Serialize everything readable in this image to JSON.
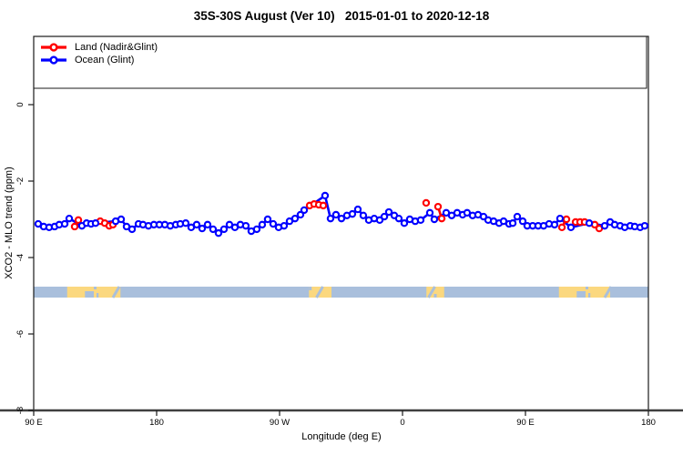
{
  "chart_data": {
    "type": "line",
    "title": "35S-30S August (Ver 10)   2015-01-01 to 2020-12-18",
    "xlabel": "Longitude (deg E)",
    "ylabel": "XCO2 - MLO trend (ppm)",
    "xlim": [
      90,
      540
    ],
    "ylim": [
      -8,
      0
    ],
    "grid": false,
    "legend_position": "top-left",
    "x_ticks": [
      {
        "lon": 90,
        "label": "90 E"
      },
      {
        "lon": 180,
        "label": "180"
      },
      {
        "lon": 270,
        "label": "90 W"
      },
      {
        "lon": 360,
        "label": "0"
      },
      {
        "lon": 450,
        "label": "90 E"
      },
      {
        "lon": 540,
        "label": "180"
      }
    ],
    "y_ticks": [
      {
        "value": 0,
        "label": "0"
      },
      {
        "value": -2,
        "label": "-2"
      },
      {
        "value": -4,
        "label": "-4"
      },
      {
        "value": -6,
        "label": "-6"
      },
      {
        "value": -8,
        "label": "-8"
      }
    ],
    "series": [
      {
        "name": "Land (Nadir&Glint)",
        "color": "#ff0000",
        "marker": "open-circle",
        "points": [
          [
            120,
            -3.19
          ],
          [
            122.7,
            -3.02
          ],
          [
            138.7,
            -3.05
          ],
          [
            142,
            -3.1
          ],
          [
            145.3,
            -3.17
          ],
          [
            148,
            -3.14
          ],
          [
            292,
            -2.64
          ],
          [
            295.3,
            -2.6
          ],
          [
            298.7,
            -2.62
          ],
          [
            302,
            -2.64
          ],
          [
            377.3,
            -2.57
          ],
          [
            386,
            -2.67
          ],
          [
            388.7,
            -2.98
          ],
          [
            476.7,
            -3.21
          ],
          [
            480,
            -3.0
          ],
          [
            486.7,
            -3.07
          ],
          [
            490,
            -3.07
          ],
          [
            493.3,
            -3.07
          ],
          [
            500.7,
            -3.14
          ],
          [
            504,
            -3.24
          ]
        ]
      },
      {
        "name": "Ocean (Glint)",
        "color": "#0000ff",
        "marker": "open-circle",
        "points": [
          [
            93.3,
            -3.12
          ],
          [
            97.3,
            -3.19
          ],
          [
            101.3,
            -3.21
          ],
          [
            105.3,
            -3.19
          ],
          [
            108.7,
            -3.14
          ],
          [
            112.7,
            -3.12
          ],
          [
            116,
            -2.98
          ],
          [
            125.3,
            -3.17
          ],
          [
            128.7,
            -3.1
          ],
          [
            132,
            -3.12
          ],
          [
            135.3,
            -3.1
          ],
          [
            150,
            -3.05
          ],
          [
            154,
            -3.0
          ],
          [
            158,
            -3.19
          ],
          [
            162,
            -3.26
          ],
          [
            166.7,
            -3.12
          ],
          [
            170,
            -3.14
          ],
          [
            174,
            -3.17
          ],
          [
            178,
            -3.14
          ],
          [
            182,
            -3.14
          ],
          [
            186,
            -3.14
          ],
          [
            190,
            -3.17
          ],
          [
            194,
            -3.14
          ],
          [
            197.3,
            -3.12
          ],
          [
            201.3,
            -3.1
          ],
          [
            205.3,
            -3.21
          ],
          [
            209.3,
            -3.14
          ],
          [
            213.3,
            -3.24
          ],
          [
            217.3,
            -3.14
          ],
          [
            221.3,
            -3.26
          ],
          [
            225.3,
            -3.36
          ],
          [
            229.3,
            -3.26
          ],
          [
            233.3,
            -3.14
          ],
          [
            237.3,
            -3.21
          ],
          [
            241.3,
            -3.14
          ],
          [
            245.3,
            -3.17
          ],
          [
            249.3,
            -3.31
          ],
          [
            253.3,
            -3.26
          ],
          [
            257.3,
            -3.14
          ],
          [
            261.3,
            -3.0
          ],
          [
            265.3,
            -3.12
          ],
          [
            269.3,
            -3.21
          ],
          [
            273.3,
            -3.17
          ],
          [
            277.3,
            -3.05
          ],
          [
            281.3,
            -2.98
          ],
          [
            285.3,
            -2.88
          ],
          [
            288,
            -2.76
          ],
          [
            303.3,
            -2.38
          ],
          [
            307.3,
            -2.98
          ],
          [
            311.3,
            -2.88
          ],
          [
            315.3,
            -2.98
          ],
          [
            319.3,
            -2.9
          ],
          [
            323.3,
            -2.86
          ],
          [
            327.3,
            -2.74
          ],
          [
            331.3,
            -2.9
          ],
          [
            335.3,
            -3.02
          ],
          [
            339.3,
            -2.98
          ],
          [
            343.3,
            -3.02
          ],
          [
            346.7,
            -2.93
          ],
          [
            350,
            -2.81
          ],
          [
            354,
            -2.9
          ],
          [
            357.3,
            -2.98
          ],
          [
            361.3,
            -3.1
          ],
          [
            365.3,
            -3.0
          ],
          [
            369.3,
            -3.05
          ],
          [
            373.3,
            -3.02
          ],
          [
            380,
            -2.83
          ],
          [
            383.3,
            -3.0
          ],
          [
            392,
            -2.83
          ],
          [
            396,
            -2.9
          ],
          [
            400,
            -2.83
          ],
          [
            404,
            -2.88
          ],
          [
            407.3,
            -2.83
          ],
          [
            411.3,
            -2.9
          ],
          [
            415.3,
            -2.88
          ],
          [
            419.3,
            -2.93
          ],
          [
            422.7,
            -3.02
          ],
          [
            426.7,
            -3.05
          ],
          [
            430.7,
            -3.1
          ],
          [
            434,
            -3.05
          ],
          [
            438,
            -3.12
          ],
          [
            440.7,
            -3.1
          ],
          [
            444,
            -2.93
          ],
          [
            448,
            -3.05
          ],
          [
            451.3,
            -3.17
          ],
          [
            455.3,
            -3.17
          ],
          [
            459.3,
            -3.17
          ],
          [
            463.3,
            -3.17
          ],
          [
            467.3,
            -3.12
          ],
          [
            471.3,
            -3.14
          ],
          [
            475.3,
            -2.98
          ],
          [
            483.3,
            -3.21
          ],
          [
            496.7,
            -3.1
          ],
          [
            508,
            -3.17
          ],
          [
            512,
            -3.07
          ],
          [
            515.3,
            -3.14
          ],
          [
            519.3,
            -3.17
          ],
          [
            522.7,
            -3.21
          ],
          [
            526.7,
            -3.17
          ],
          [
            530,
            -3.19
          ],
          [
            534,
            -3.21
          ],
          [
            537.3,
            -3.17
          ]
        ]
      }
    ],
    "map_strip": {
      "description": "land/ocean strip for 35S-30S latitude band",
      "center_value": -4.9,
      "ocean_color": "#a9bfdc",
      "land_color": "#fbd87f",
      "land_segments": [
        {
          "name": "Australia",
          "from": 114.5,
          "to": 153.5,
          "bottom_notches": [
            [
              127.5,
              134,
              7
            ],
            [
              136,
              137.5,
              5
            ]
          ],
          "top_notches": [
            [
              134,
              136,
              3
            ]
          ],
          "slashes": [
            150
          ]
        },
        {
          "name": "South America",
          "from": 291.5,
          "to": 308,
          "bottom_notches": [],
          "top_notches": [
            [
              291.5,
              293.5,
              4
            ]
          ],
          "slashes": [
            299
          ]
        },
        {
          "name": "South Africa",
          "from": 377.5,
          "to": 390.5,
          "bottom_notches": [
            [
              383,
              385,
              4
            ]
          ],
          "top_notches": [],
          "slashes": [
            381
          ]
        },
        {
          "name": "Australia",
          "from": 474.5,
          "to": 512,
          "bottom_notches": [
            [
              487.5,
              494,
              7
            ],
            [
              496,
              497.5,
              5
            ]
          ],
          "top_notches": [
            [
              494,
              496,
              3
            ]
          ],
          "slashes": [
            510
          ]
        }
      ]
    }
  },
  "colors": {
    "land_series": "#ff0000",
    "ocean_series": "#0000ff",
    "axis_line": "#3f3f3f",
    "box_line": "#1a1a1a",
    "strip_ocean": "#a9bfdc",
    "strip_land": "#fbd87f",
    "marker_fill": "#ffffff"
  },
  "legend": {
    "items": [
      {
        "label": "Land (Nadir&Glint)",
        "color": "#ff0000"
      },
      {
        "label": "Ocean (Glint)",
        "color": "#0000ff"
      }
    ]
  }
}
